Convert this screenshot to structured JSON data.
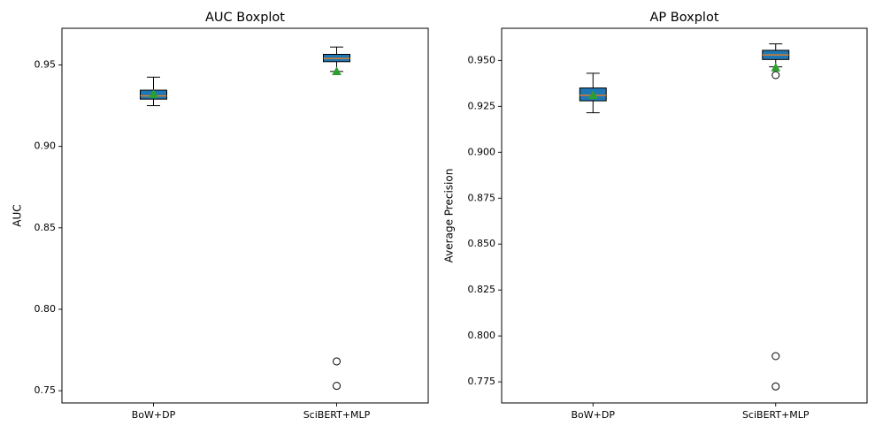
{
  "figure": {
    "background": "#ffffff"
  },
  "style": {
    "box_fill": "#1f77b4",
    "box_edge": "#000000",
    "median_color": "#ff7f0e",
    "mean_color": "#2ca02c",
    "flier_edge": "#000000"
  },
  "chart_data": [
    {
      "type": "boxplot",
      "title": "AUC Boxplot",
      "xlabel": "",
      "ylabel": "AUC",
      "categories": [
        "BoW+DP",
        "SciBERT+MLP"
      ],
      "ylim": [
        0.7425,
        0.9725
      ],
      "yticks": [
        0.75,
        0.8,
        0.85,
        0.9,
        0.95
      ],
      "ytick_labels": [
        "0.75",
        "0.80",
        "0.85",
        "0.90",
        "0.95"
      ],
      "grid": false,
      "boxes": [
        {
          "name": "BoW+DP",
          "whislo": 0.925,
          "q1": 0.929,
          "median": 0.931,
          "q3": 0.9345,
          "whishi": 0.9425,
          "mean": 0.932,
          "fliers": []
        },
        {
          "name": "SciBERT+MLP",
          "whislo": 0.946,
          "q1": 0.952,
          "median": 0.954,
          "q3": 0.9565,
          "whishi": 0.961,
          "mean": 0.946,
          "fliers": [
            0.768,
            0.753
          ]
        }
      ]
    },
    {
      "type": "boxplot",
      "title": "AP Boxplot",
      "xlabel": "",
      "ylabel": "Average Precision",
      "categories": [
        "BoW+DP",
        "SciBERT+MLP"
      ],
      "ylim": [
        0.7635,
        0.9675
      ],
      "yticks": [
        0.775,
        0.8,
        0.825,
        0.85,
        0.875,
        0.9,
        0.925,
        0.95
      ],
      "ytick_labels": [
        "0.775",
        "0.800",
        "0.825",
        "0.850",
        "0.875",
        "0.900",
        "0.925",
        "0.950"
      ],
      "grid": false,
      "boxes": [
        {
          "name": "BoW+DP",
          "whislo": 0.9215,
          "q1": 0.928,
          "median": 0.931,
          "q3": 0.935,
          "whishi": 0.943,
          "mean": 0.931,
          "fliers": []
        },
        {
          "name": "SciBERT+MLP",
          "whislo": 0.9465,
          "q1": 0.9505,
          "median": 0.953,
          "q3": 0.9555,
          "whishi": 0.959,
          "mean": 0.946,
          "fliers": [
            0.942,
            0.789,
            0.7725
          ]
        }
      ]
    }
  ]
}
